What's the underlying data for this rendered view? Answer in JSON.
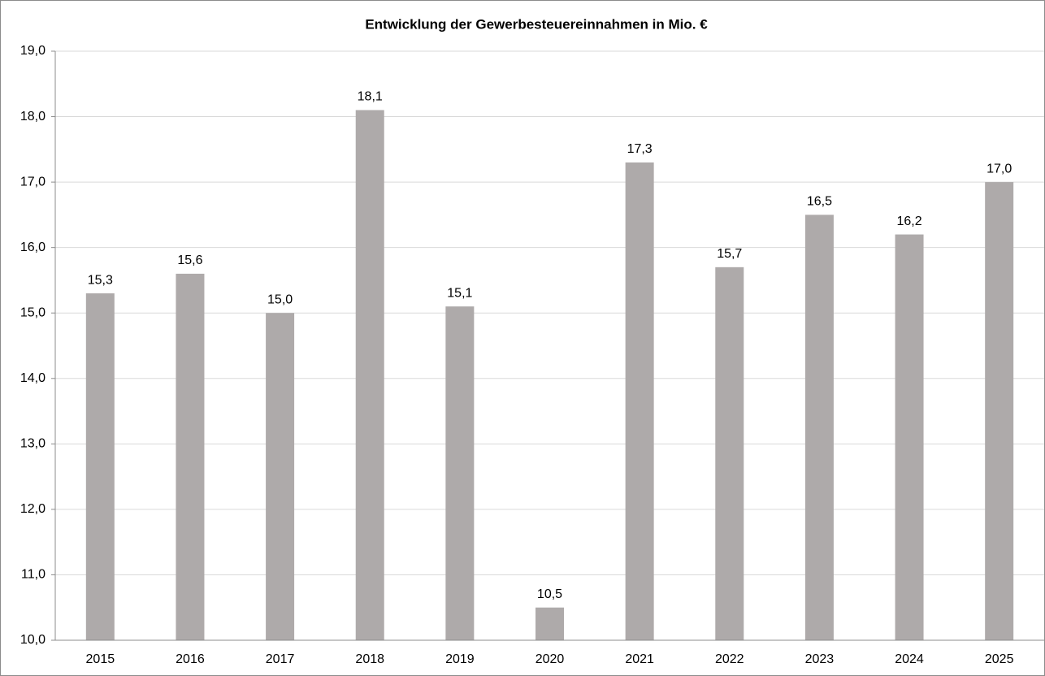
{
  "chart_data": {
    "type": "bar",
    "title": "Entwicklung der Gewerbesteuereinnahmen in Mio. €",
    "categories": [
      "2015",
      "2016",
      "2017",
      "2018",
      "2019",
      "2020",
      "2021",
      "2022",
      "2023",
      "2024",
      "2025"
    ],
    "values": [
      15.3,
      15.6,
      15.0,
      18.1,
      15.1,
      10.5,
      17.3,
      15.7,
      16.5,
      16.2,
      17.0
    ],
    "value_labels": [
      "15,3",
      "15,6",
      "15,0",
      "18,1",
      "15,1",
      "10,5",
      "17,3",
      "15,7",
      "16,5",
      "16,2",
      "17,0"
    ],
    "color": "#aeaaaa",
    "ylim": [
      10,
      19
    ],
    "yticks": [
      {
        "value": 10,
        "label": "10,0"
      },
      {
        "value": 11,
        "label": "11,0"
      },
      {
        "value": 12,
        "label": "12,0"
      },
      {
        "value": 13,
        "label": "13,0"
      },
      {
        "value": 14,
        "label": "14,0"
      },
      {
        "value": 15,
        "label": "15,0"
      },
      {
        "value": 16,
        "label": "16,0"
      },
      {
        "value": 17,
        "label": "17,0"
      },
      {
        "value": 18,
        "label": "18,0"
      },
      {
        "value": 19,
        "label": "19,0"
      }
    ],
    "grid": true
  }
}
